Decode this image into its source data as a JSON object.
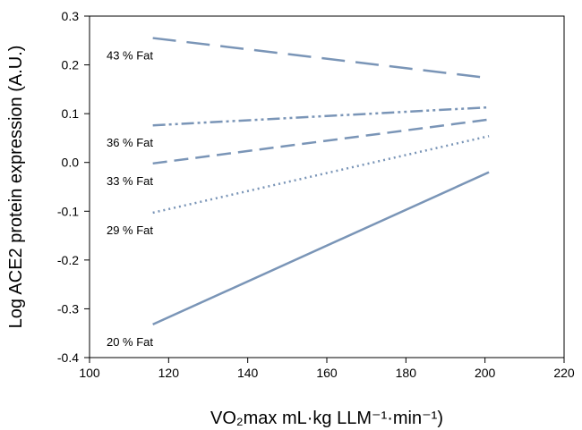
{
  "chart_data": {
    "type": "line",
    "xlabel": "VO₂max mL·kg LLM⁻¹·min⁻¹)",
    "ylabel": "Log ACE2 protein expression (A.U.)",
    "xlim": [
      100,
      220
    ],
    "ylim": [
      -0.4,
      0.3
    ],
    "x_ticks": [
      "100",
      "120",
      "140",
      "160",
      "180",
      "200",
      "220"
    ],
    "y_ticks": [
      "-0.4",
      "-0.3",
      "-0.2",
      "-0.1",
      "0.0",
      "0.1",
      "0.2",
      "0.3"
    ],
    "grid": false,
    "line_color": "#7a95b7",
    "series": [
      {
        "name": "43 % Fat",
        "x": [
          116,
          201
        ],
        "y": [
          0.255,
          0.173
        ],
        "dash": "long-dash"
      },
      {
        "name": "36 % Fat",
        "x": [
          116,
          201
        ],
        "y": [
          0.076,
          0.113
        ],
        "dash": "dash-dot-dot"
      },
      {
        "name": "33 % Fat",
        "x": [
          116,
          201
        ],
        "y": [
          -0.002,
          0.088
        ],
        "dash": "medium-dash"
      },
      {
        "name": "29 % Fat",
        "x": [
          116,
          201
        ],
        "y": [
          -0.103,
          0.054
        ],
        "dash": "dotted"
      },
      {
        "name": "20 % Fat",
        "x": [
          116,
          201
        ],
        "y": [
          -0.332,
          -0.02
        ],
        "dash": "solid"
      }
    ]
  }
}
